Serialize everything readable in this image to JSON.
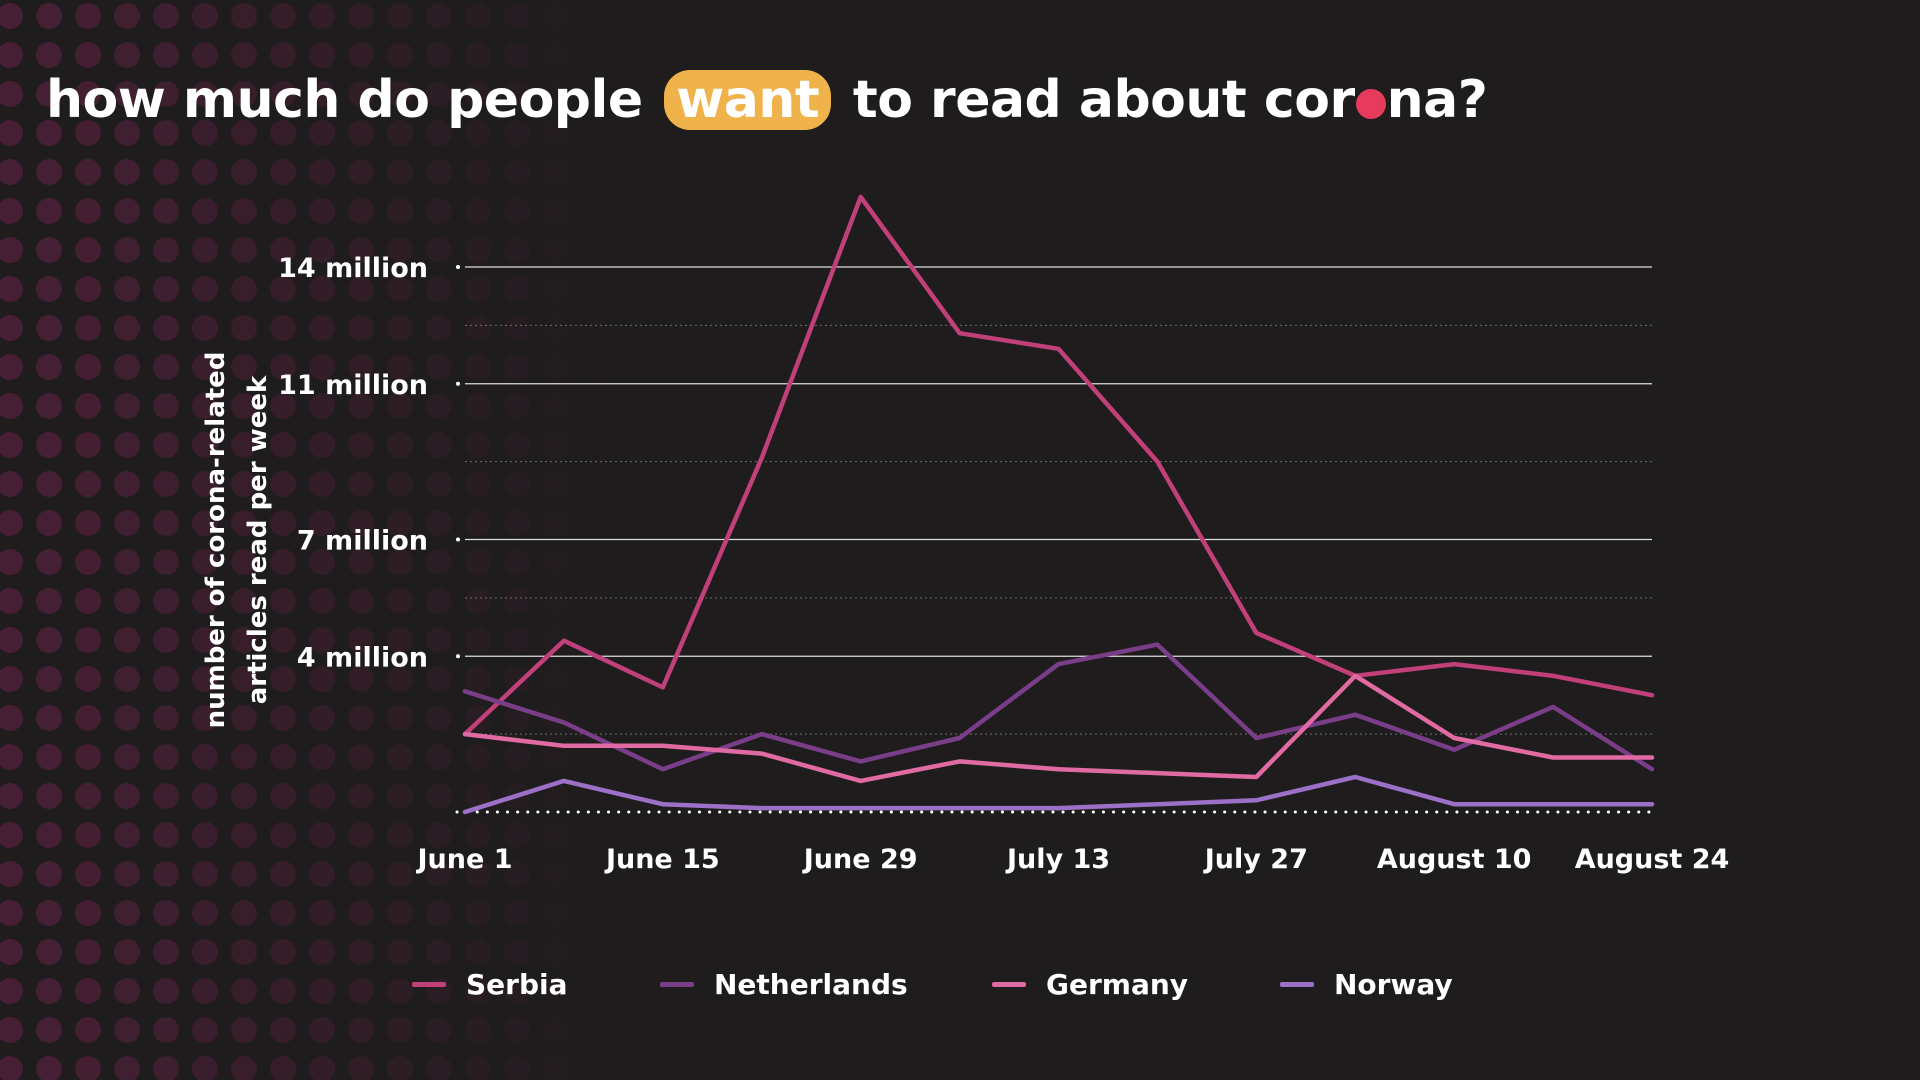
{
  "title": {
    "before": "how much do people",
    "highlight": "want",
    "middle": "to read about cor",
    "after": "na?"
  },
  "colors": {
    "background": "#1e1c1d",
    "highlight": "#f0b24a",
    "dot": "#e63b5c",
    "grid": "#ffffff",
    "pattern": "#4a2036"
  },
  "chart_data": {
    "type": "line",
    "ylabel": [
      "number of corona-related",
      "articles read per week"
    ],
    "xlabel": "",
    "ylim": [
      0,
      14
    ],
    "yticks": [
      {
        "value": 4,
        "label": "4 million"
      },
      {
        "value": 7,
        "label": "7 million"
      },
      {
        "value": 11,
        "label": "11 million"
      },
      {
        "value": 14,
        "label": "14 million"
      }
    ],
    "x": [
      "June 1",
      "June 8",
      "June 15",
      "June 22",
      "June 29",
      "July 6",
      "July 13",
      "July 20",
      "July 27",
      "August 3",
      "August 10",
      "August 17",
      "August 24"
    ],
    "xtick_labels": [
      "June 1",
      "June 15",
      "June 29",
      "July 13",
      "July 27",
      "August 10",
      "August 24"
    ],
    "grid": true,
    "legend_position": "bottom",
    "series": [
      {
        "name": "Serbia",
        "color": "#c2407a",
        "values": [
          2.0,
          4.4,
          3.2,
          9.1,
          15.8,
          12.3,
          11.9,
          9.0,
          4.6,
          3.5,
          3.8,
          3.5,
          3.0
        ]
      },
      {
        "name": "Netherlands",
        "color": "#7a3d88",
        "values": [
          3.1,
          2.3,
          1.1,
          2.0,
          1.3,
          1.9,
          3.8,
          4.3,
          1.9,
          2.5,
          1.6,
          2.7,
          1.1
        ]
      },
      {
        "name": "Germany",
        "color": "#e06aa2",
        "values": [
          2.0,
          1.7,
          1.7,
          1.5,
          0.8,
          1.3,
          1.1,
          1.0,
          0.9,
          3.5,
          1.9,
          1.4,
          1.4
        ]
      },
      {
        "name": "Norway",
        "color": "#9b70c6",
        "values": [
          0.0,
          0.8,
          0.2,
          0.1,
          0.1,
          0.1,
          0.1,
          0.2,
          0.3,
          0.9,
          0.2,
          0.2,
          0.2
        ]
      }
    ]
  }
}
